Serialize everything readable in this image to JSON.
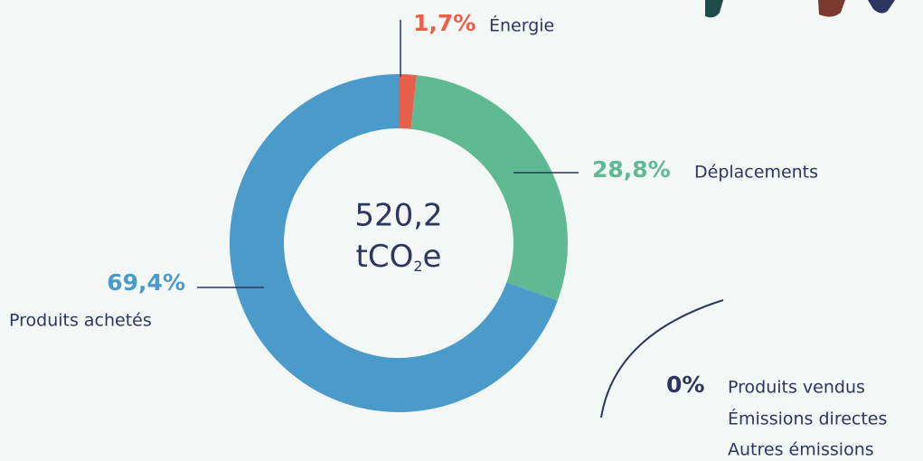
{
  "chart_data": {
    "type": "donut",
    "center_label": "520,2",
    "center_unit": [
      "tCO",
      "2",
      "e"
    ],
    "categories": [
      "Énergie",
      "Déplacements",
      "Produits achetés"
    ],
    "values": [
      1.7,
      28.8,
      69.4
    ],
    "value_labels": [
      "1,7%",
      "28,8%",
      "69,4%"
    ],
    "colors": [
      "#e8604c",
      "#5fba93",
      "#4a9bc9"
    ],
    "zero_share": {
      "label": "0%",
      "categories": [
        "Produits vendus",
        "Émissions directes",
        "Autres émissions"
      ]
    }
  }
}
